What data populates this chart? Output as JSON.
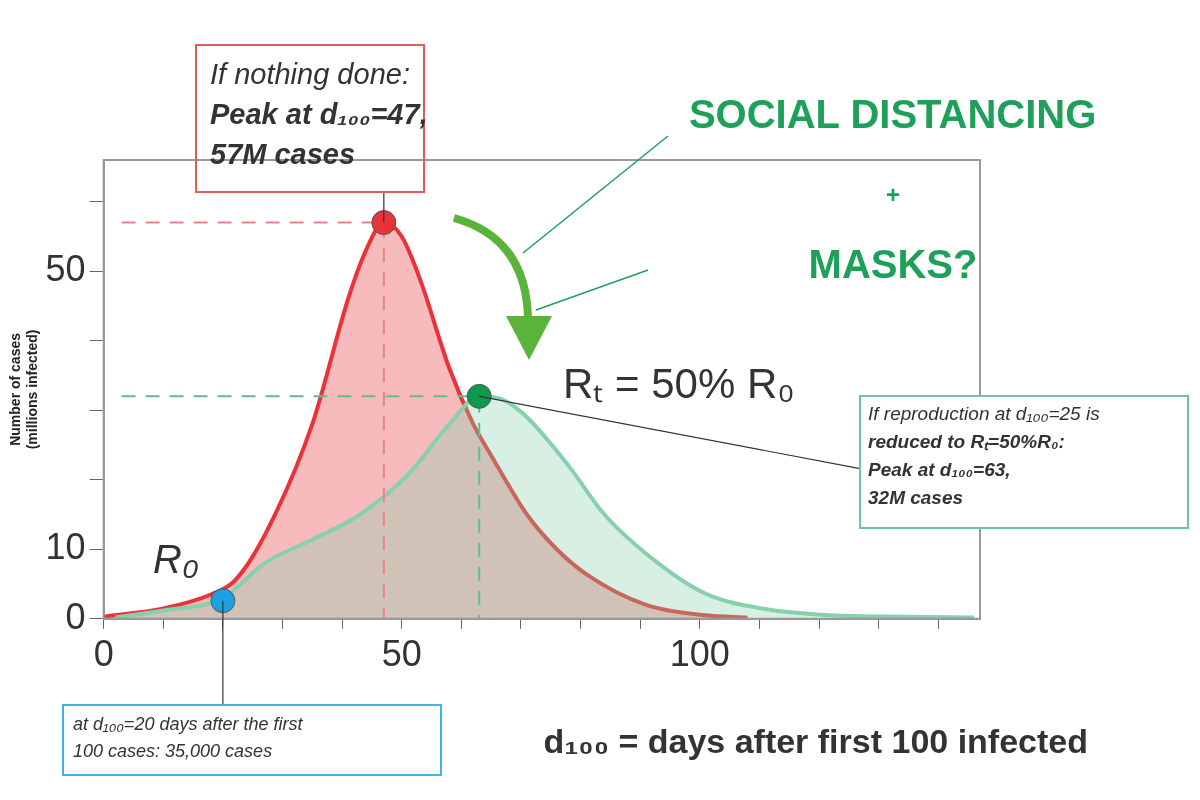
{
  "chart_data": {
    "type": "area",
    "xlabel": "d₁₀₀ = days after first 100 infected",
    "ylabel": "Number of cases\n(millions infected)",
    "xlim": [
      0,
      147
    ],
    "xticks": [
      0,
      {
        "value": 10,
        "label": null
      },
      {
        "value": 20,
        "label": null
      },
      {
        "value": 30,
        "label": null
      },
      {
        "value": 40,
        "label": null
      },
      50,
      {
        "value": 60,
        "label": null
      },
      {
        "value": 70,
        "label": null
      },
      {
        "value": 80,
        "label": null
      },
      {
        "value": 90,
        "label": null
      },
      100,
      {
        "value": 110,
        "label": null
      },
      {
        "value": 120,
        "label": null
      },
      {
        "value": 130,
        "label": null
      },
      {
        "value": 140,
        "label": null
      }
    ],
    "ylim": [
      0,
      66
    ],
    "yticks": [
      0,
      10,
      {
        "value": 20,
        "label": null
      },
      {
        "value": 30,
        "label": null
      },
      {
        "value": 40,
        "label": null
      },
      50,
      {
        "value": 60,
        "label": null
      }
    ],
    "grid": false,
    "legend": false,
    "series": [
      {
        "color": "#86d1ab",
        "x": [
          2,
          10,
          20,
          27,
          35,
          43,
          51,
          58,
          63,
          67,
          71,
          78,
          84,
          93,
          101,
          111,
          122,
          135,
          146
        ],
        "values": [
          0.2,
          1.2,
          3,
          8,
          11.4,
          15,
          20.7,
          28,
          32,
          31.5,
          29,
          22,
          15,
          8,
          3.6,
          1.4,
          0.5,
          0.3,
          0.2
        ]
      },
      {
        "color": "#e8333a",
        "x": [
          0,
          10,
          18,
          22,
          27,
          35,
          41,
          44,
          47,
          50,
          53,
          58,
          62,
          65,
          71,
          76,
          81,
          91,
          101,
          108
        ],
        "values": [
          0.3,
          1.5,
          3.5,
          5.5,
          12,
          28,
          46,
          53,
          57,
          55,
          49,
          36,
          28,
          23.5,
          15,
          10,
          6.4,
          2,
          0.5,
          0.2
        ]
      },
      {
        "type": "line",
        "color": "#f08080",
        "line_style": "dashed",
        "x": [
          3,
          41,
          47,
          47
        ],
        "values": [
          57,
          57,
          57,
          0
        ]
      },
      {
        "type": "line",
        "color": "#5fbf8a",
        "line_style": "dashed",
        "x": [
          3,
          60,
          63,
          63
        ],
        "values": [
          32,
          32,
          32,
          0
        ]
      },
      {
        "type": "scatter",
        "marker": "circle",
        "color": "#e8333a",
        "x": [
          47
        ],
        "values": [
          57
        ]
      },
      {
        "type": "scatter",
        "marker": "circle",
        "color": "#0e9a4c",
        "x": [
          63
        ],
        "values": [
          32
        ]
      },
      {
        "type": "scatter",
        "marker": "circle",
        "color": "#1ba1e2",
        "x": [
          20
        ],
        "values": [
          2.6
        ]
      }
    ],
    "annotations": [
      {
        "text": "If nothing done:\nPeak at d₁₀₀=47,\n57M cases",
        "x": 47,
        "y": 57
      },
      "SOCIAL DISTANCING\n+\nMASKS?",
      "Rₜ = 50% R₀",
      "R₀",
      {
        "text": "If reproduction at d₁₀₀=25 is\nreduced to Rₜ=50%R₀:\nPeak at d₁₀₀=63,\n32M cases",
        "x": 63,
        "y": 32
      },
      {
        "text": "at d₁₀₀=20 days after the first\n100 cases: 35,000 cases",
        "x": 20,
        "y": 2.6
      }
    ]
  }
}
